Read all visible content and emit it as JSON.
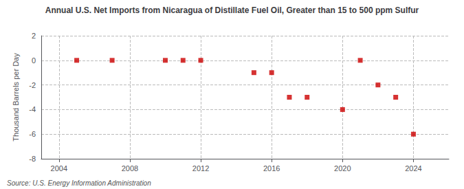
{
  "chart_data": {
    "type": "scatter",
    "title": "Annual U.S. Net Imports from Nicaragua of Distillate Fuel Oil, Greater than 15 to 500 ppm Sulfur",
    "ylabel": "Thousand Barrels per Day",
    "annotations": [
      "Source: U.S. Energy Information Administration"
    ],
    "x": [
      2005,
      2007,
      2010,
      2011,
      2012,
      2015,
      2016,
      2017,
      2018,
      2020,
      2021,
      2022,
      2023,
      2024
    ],
    "values": [
      0,
      0,
      0,
      0,
      0,
      -1,
      -1,
      -3,
      -3,
      -4,
      0,
      -2,
      -3,
      -6
    ],
    "color": "#cc0000",
    "marker": "square",
    "xlim": [
      2003,
      2026
    ],
    "xticks": [
      2004,
      2008,
      2012,
      2016,
      2020,
      2024
    ],
    "ylim": [
      -8,
      2
    ],
    "yticks": [
      2,
      0,
      -2,
      -4,
      -6,
      -8
    ],
    "grid": true
  }
}
